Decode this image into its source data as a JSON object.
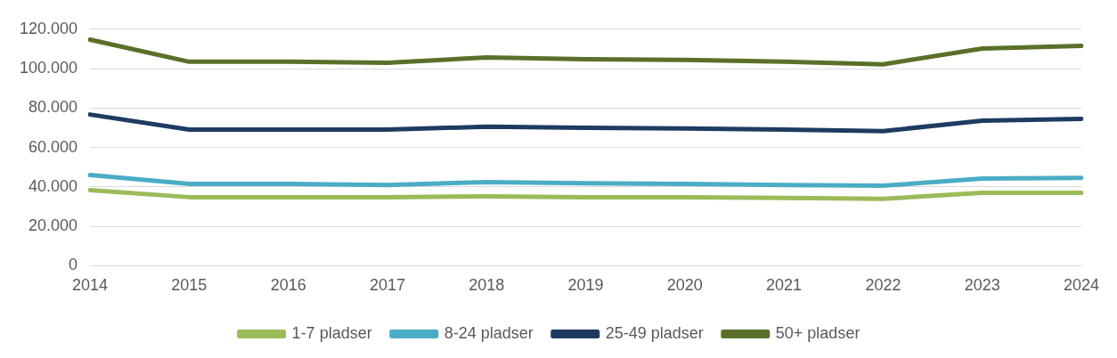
{
  "chart_data": {
    "type": "line",
    "categories": [
      "2014",
      "2015",
      "2016",
      "2017",
      "2018",
      "2019",
      "2020",
      "2021",
      "2022",
      "2023",
      "2024"
    ],
    "series": [
      {
        "name": "1-7 pladser",
        "color": "#9bbb59",
        "values": [
          38400,
          34800,
          34800,
          34800,
          35200,
          34800,
          34800,
          34400,
          33900,
          37000,
          37000
        ]
      },
      {
        "name": "8-24 pladser",
        "color": "#4bacc6",
        "values": [
          46000,
          41500,
          41500,
          41000,
          42400,
          41900,
          41500,
          41000,
          40600,
          44200,
          44600
        ]
      },
      {
        "name": "25-49 pladser",
        "color": "#1f3b63",
        "values": [
          76700,
          69100,
          69100,
          69100,
          70500,
          70000,
          69600,
          69100,
          68300,
          73600,
          74500
        ]
      },
      {
        "name": "50+ pladser",
        "color": "#5a7029",
        "values": [
          114700,
          103500,
          103500,
          103000,
          105700,
          104800,
          104400,
          103500,
          102200,
          110200,
          111500
        ]
      }
    ],
    "ylim": [
      0,
      120000
    ],
    "yticks": [
      0,
      {
        "value": 20000,
        "label": "20.000"
      },
      {
        "value": 40000,
        "label": "40.000"
      },
      {
        "value": 60000,
        "label": "60.000"
      },
      {
        "value": 80000,
        "label": "80.000"
      },
      {
        "value": 100000,
        "label": "100.000"
      },
      {
        "value": 120000,
        "label": "120.000"
      }
    ],
    "grid": "y",
    "legend": "bottom",
    "marker": "none",
    "line_style": "solid"
  }
}
